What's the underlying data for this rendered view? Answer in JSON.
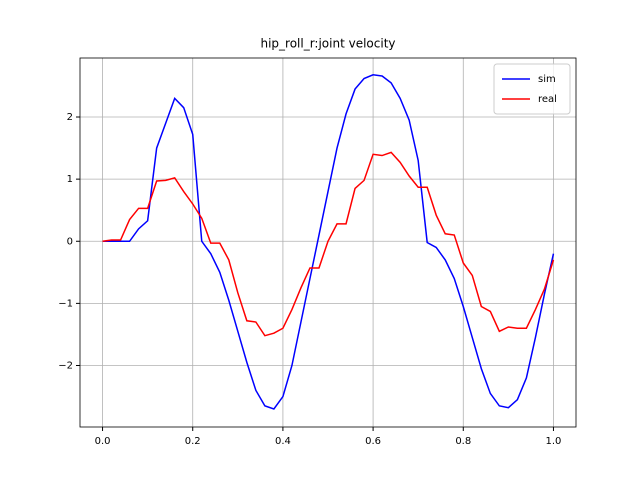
{
  "chart_data": {
    "type": "line",
    "title": "hip_roll_r:joint velocity",
    "x": [
      0,
      0.02,
      0.04,
      0.06,
      0.08,
      0.1,
      0.12,
      0.14,
      0.16,
      0.18,
      0.2,
      0.22,
      0.24,
      0.26,
      0.28,
      0.3,
      0.32,
      0.34,
      0.36,
      0.38,
      0.4,
      0.42,
      0.44,
      0.46,
      0.48,
      0.5,
      0.52,
      0.54,
      0.56,
      0.58,
      0.6,
      0.62,
      0.64,
      0.66,
      0.68,
      0.7,
      0.72,
      0.74,
      0.76,
      0.78,
      0.8,
      0.82,
      0.84,
      0.86,
      0.88,
      0.9,
      0.92,
      0.94,
      0.96,
      0.98,
      1.0
    ],
    "series": [
      {
        "name": "sim",
        "color": "#0000ff",
        "values": [
          0,
          0,
          0,
          0,
          0.2,
          0.33,
          1.5,
          1.9,
          2.3,
          2.15,
          1.72,
          0.0,
          -0.2,
          -0.5,
          -0.95,
          -1.45,
          -1.95,
          -2.4,
          -2.65,
          -2.7,
          -2.5,
          -2.0,
          -1.3,
          -0.6,
          0.1,
          0.8,
          1.5,
          2.05,
          2.45,
          2.62,
          2.68,
          2.66,
          2.55,
          2.3,
          1.95,
          1.3,
          -0.02,
          -0.1,
          -0.3,
          -0.6,
          -1.05,
          -1.55,
          -2.05,
          -2.45,
          -2.65,
          -2.68,
          -2.55,
          -2.2,
          -1.55,
          -0.85,
          -0.2
        ]
      },
      {
        "name": "real",
        "color": "#ff0000",
        "values": [
          0,
          0.02,
          0.02,
          0.35,
          0.53,
          0.53,
          0.97,
          0.98,
          1.02,
          0.8,
          0.6,
          0.37,
          -0.03,
          -0.03,
          -0.3,
          -0.83,
          -1.28,
          -1.3,
          -1.52,
          -1.48,
          -1.4,
          -1.1,
          -0.75,
          -0.43,
          -0.43,
          0.0,
          0.28,
          0.28,
          0.85,
          0.98,
          1.4,
          1.38,
          1.43,
          1.27,
          1.05,
          0.87,
          0.87,
          0.42,
          0.12,
          0.1,
          -0.35,
          -0.55,
          -1.05,
          -1.13,
          -1.45,
          -1.38,
          -1.4,
          -1.4,
          -1.1,
          -0.77,
          -0.3
        ]
      }
    ],
    "xlim": [
      -0.05,
      1.05
    ],
    "ylim": [
      -2.99,
      2.95
    ],
    "xticks": [
      {
        "value": 0,
        "label": "0.0"
      },
      0.2,
      0.4,
      0.6,
      0.8,
      {
        "value": 1,
        "label": "1.0"
      }
    ],
    "yticks": [
      {
        "value": -2,
        "label": "−2"
      },
      {
        "value": -1,
        "label": "−1"
      },
      0,
      1,
      2
    ],
    "grid": true,
    "legend": "upper right"
  }
}
